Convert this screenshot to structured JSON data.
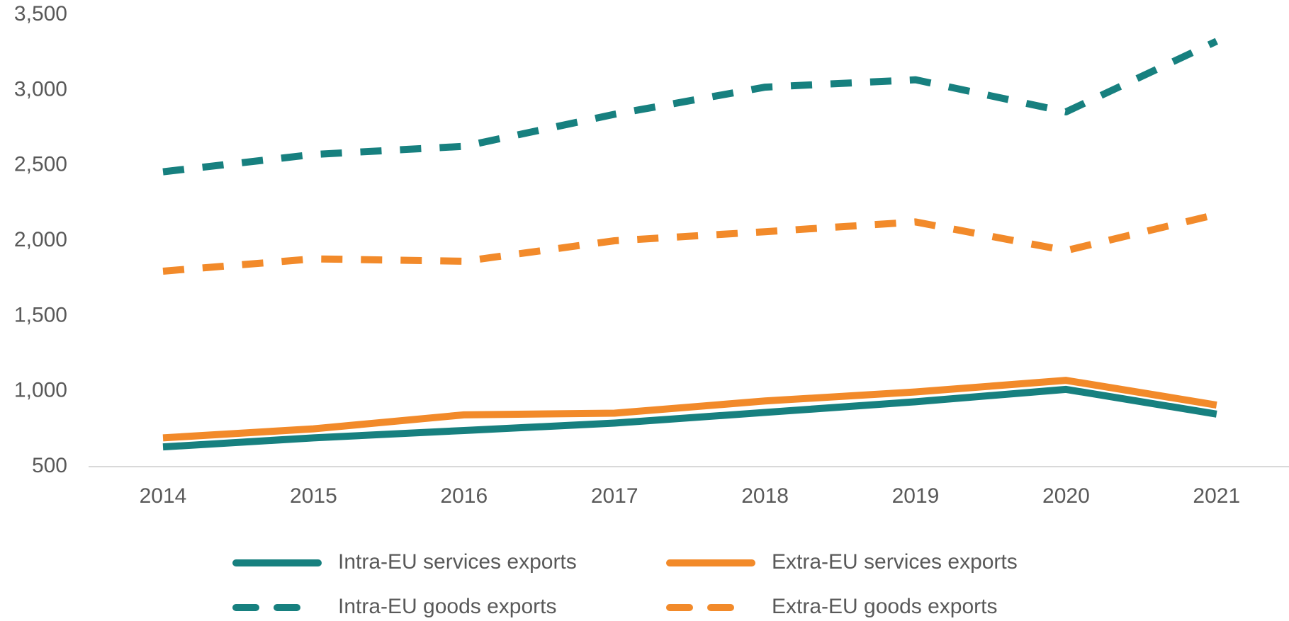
{
  "chart_data": {
    "type": "line",
    "categories": [
      "2014",
      "2015",
      "2016",
      "2017",
      "2018",
      "2019",
      "2020",
      "2021"
    ],
    "series": [
      {
        "name": "Intra-EU services exports",
        "color": "#17807f",
        "line_style": "solid",
        "values": [
          631,
          691,
          740,
          789,
          860,
          931,
          1013,
          849
        ]
      },
      {
        "name": "Extra-EU services exports",
        "color": "#f28a2a",
        "line_style": "solid",
        "values": [
          691,
          751,
          844,
          855,
          936,
          996,
          1073,
          909
        ]
      },
      {
        "name": "Intra-EU goods exports",
        "color": "#17807f",
        "line_style": "dashed",
        "values": [
          2458,
          2573,
          2627,
          2840,
          3020,
          3069,
          2856,
          3325
        ]
      },
      {
        "name": "Extra-EU goods exports",
        "color": "#f28a2a",
        "line_style": "dashed",
        "values": [
          1798,
          1880,
          1864,
          2000,
          2060,
          2125,
          1935,
          2175
        ]
      }
    ],
    "ylim": [
      500,
      3500
    ],
    "yticks": [
      500,
      {
        "value": 1000,
        "label": "1,000"
      },
      {
        "value": 1500,
        "label": "1,500"
      },
      {
        "value": 2000,
        "label": "2,000"
      },
      {
        "value": 2500,
        "label": "2,500"
      },
      {
        "value": 3000,
        "label": "3,000"
      },
      {
        "value": 3500,
        "label": "3,500"
      }
    ],
    "grid": false,
    "legend": "bottom"
  }
}
